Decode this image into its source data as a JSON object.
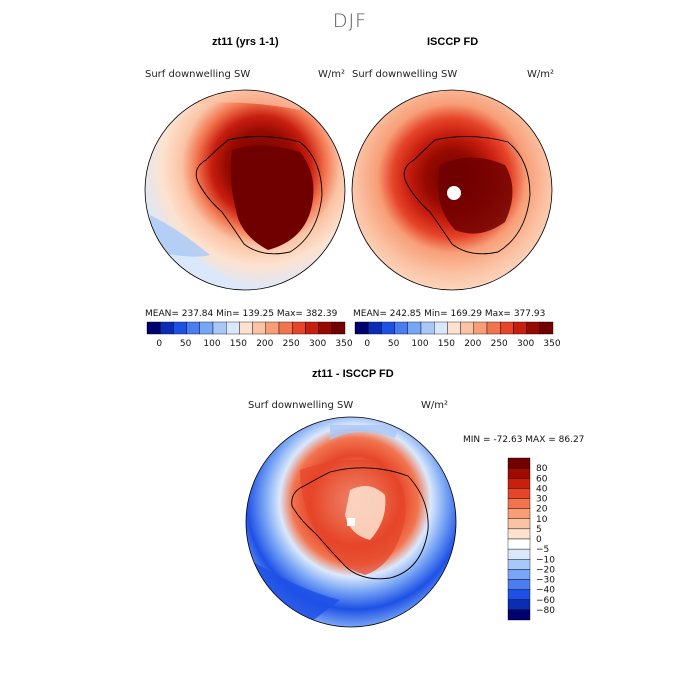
{
  "figure": {
    "season": "DJF",
    "panels": [
      {
        "title": "zt11 (yrs 1-1)",
        "variable": "Surf downwelling SW",
        "units": "W/m²",
        "stats": "MEAN= 237.84   Min= 139.25   Max= 382.39"
      },
      {
        "title": "ISCCP FD",
        "variable": "Surf downwelling SW",
        "units": "W/m²",
        "stats": "MEAN= 242.85   Min= 169.29   Max= 377.93"
      }
    ],
    "diff": {
      "title": "zt11 - ISCCP FD",
      "variable": "Surf downwelling SW",
      "units": "W/m²",
      "stats": "MIN = -72.63 MAX =  86.27"
    }
  },
  "colorbar_top": {
    "colors": [
      "#00006e",
      "#0a2db4",
      "#1e50e6",
      "#4a7ef0",
      "#78a5f5",
      "#a9c8f8",
      "#dbe8fb",
      "#fde2cf",
      "#fbc3a5",
      "#f79e77",
      "#f2744e",
      "#e6452a",
      "#c81e10",
      "#960a00",
      "#700000"
    ],
    "ticks": [
      "0",
      "50",
      "100",
      "150",
      "200",
      "250",
      "300",
      "350"
    ]
  },
  "colorbar_diff": {
    "colors": [
      "#700000",
      "#a00a00",
      "#c8200c",
      "#e6452a",
      "#f2744e",
      "#f79e77",
      "#fbc3a5",
      "#fde2cf",
      "#ffffff",
      "#dbe8fb",
      "#a9c8f8",
      "#78a5f5",
      "#4a7ef0",
      "#1e50e6",
      "#0a2db4",
      "#00006e"
    ],
    "ticks": [
      "80",
      "60",
      "40",
      "30",
      "20",
      "10",
      "5",
      "0",
      "−5",
      "−10",
      "−20",
      "−30",
      "−40",
      "−60",
      "−80"
    ]
  },
  "chart_data": [
    {
      "type": "heatmap",
      "title": "zt11 (yrs 1-1)",
      "subtitle": "Surf downwelling SW",
      "units": "W/m²",
      "projection": "south polar stereographic",
      "mean": 237.84,
      "min": 139.25,
      "max": 382.39,
      "levels": [
        0,
        25,
        50,
        75,
        100,
        125,
        150,
        175,
        200,
        225,
        250,
        275,
        300,
        325,
        350
      ]
    },
    {
      "type": "heatmap",
      "title": "ISCCP FD",
      "subtitle": "Surf downwelling SW",
      "units": "W/m²",
      "projection": "south polar stereographic",
      "mean": 242.85,
      "min": 169.29,
      "max": 377.93,
      "levels": [
        0,
        25,
        50,
        75,
        100,
        125,
        150,
        175,
        200,
        225,
        250,
        275,
        300,
        325,
        350
      ]
    },
    {
      "type": "heatmap",
      "title": "zt11 - ISCCP FD",
      "subtitle": "Surf downwelling SW",
      "units": "W/m²",
      "projection": "south polar stereographic",
      "min": -72.63,
      "max": 86.27,
      "levels": [
        -80,
        -60,
        -40,
        -30,
        -20,
        -10,
        -5,
        0,
        5,
        10,
        20,
        30,
        40,
        60,
        80
      ]
    }
  ]
}
